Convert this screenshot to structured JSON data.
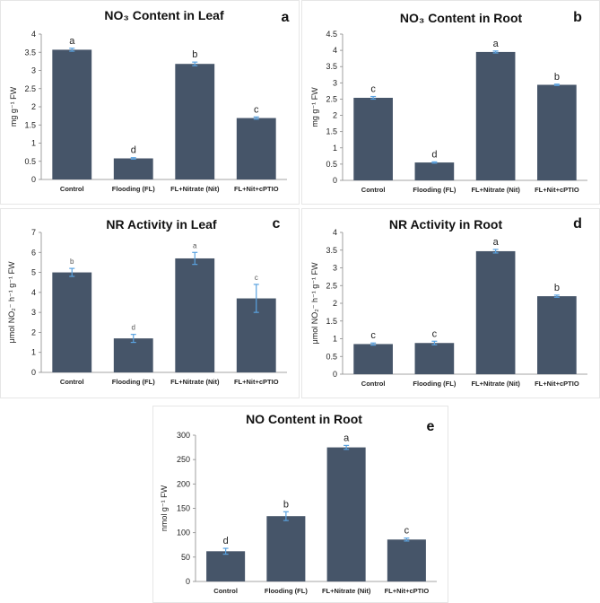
{
  "colors": {
    "bar": "#465569",
    "error_bar": "#5aa2e0"
  },
  "chart_data": [
    {
      "type": "bar",
      "panel": "a",
      "title": "NO₃ Content in Leaf",
      "ylabel": "mg g⁻¹ FW",
      "categories": [
        "Control",
        "Flooding (FL)",
        "FL+Nitrate (Nit)",
        "FL+Nit+cPTIO"
      ],
      "values": [
        3.57,
        0.58,
        3.18,
        1.69
      ],
      "errors": [
        0.04,
        0.02,
        0.05,
        0.03
      ],
      "letters": [
        "a",
        "d",
        "b",
        "c"
      ],
      "ylim": [
        0,
        4
      ],
      "yticks": [
        "0",
        "0.5",
        "1",
        "1.5",
        "2",
        "2.5",
        "3",
        "3.5",
        "4"
      ]
    },
    {
      "type": "bar",
      "panel": "b",
      "title": "NO₃ Content in Root",
      "ylabel": "mg g⁻¹ FW",
      "categories": [
        "Control",
        "Flooding (FL)",
        "FL+Nitrate (Nit)",
        "FL+Nit+cPTIO"
      ],
      "values": [
        2.54,
        0.55,
        3.95,
        2.94
      ],
      "errors": [
        0.04,
        0.02,
        0.03,
        0.02
      ],
      "letters": [
        "c",
        "d",
        "a",
        "b"
      ],
      "ylim": [
        0,
        4.5
      ],
      "yticks": [
        "0",
        "0.5",
        "1",
        "1.5",
        "2",
        "2.5",
        "3",
        "3.5",
        "4",
        "4.5"
      ]
    },
    {
      "type": "bar",
      "panel": "c",
      "title": "NR Activity in Leaf",
      "ylabel": "μmol NO₂⁻ h⁻¹ g⁻¹ FW",
      "categories": [
        "Control",
        "Flooding (FL)",
        "FL+Nitrate (Nit)",
        "FL+Nit+cPTIO"
      ],
      "values": [
        5.0,
        1.7,
        5.7,
        3.7
      ],
      "errors": [
        0.2,
        0.2,
        0.3,
        0.7
      ],
      "letters": [
        "b",
        "d",
        "a",
        "c"
      ],
      "ylim": [
        0,
        7
      ],
      "yticks": [
        "0",
        "1",
        "2",
        "3",
        "4",
        "5",
        "6",
        "7"
      ]
    },
    {
      "type": "bar",
      "panel": "d",
      "title": "NR Activity in Root",
      "ylabel": "μmol NO₂⁻ h⁻¹ g⁻¹ FW",
      "categories": [
        "Control",
        "Flooding (FL)",
        "FL+Nitrate (Nit)",
        "FL+Nit+cPTIO"
      ],
      "values": [
        0.85,
        0.88,
        3.47,
        2.2
      ],
      "errors": [
        0.03,
        0.05,
        0.05,
        0.03
      ],
      "letters": [
        "c",
        "c",
        "a",
        "b"
      ],
      "ylim": [
        0,
        4
      ],
      "yticks": [
        "0",
        "0.5",
        "1",
        "1.5",
        "2",
        "2.5",
        "3",
        "3.5",
        "4"
      ]
    },
    {
      "type": "bar",
      "panel": "e",
      "title": "NO Content in Root",
      "ylabel": "nmol g⁻¹ FW",
      "categories": [
        "Control",
        "Flooding (FL)",
        "FL+Nitrate (Nit)",
        "FL+Nit+cPTIO"
      ],
      "values": [
        62,
        134,
        275,
        86
      ],
      "errors": [
        6,
        9,
        4,
        3
      ],
      "letters": [
        "d",
        "b",
        "a",
        "c"
      ],
      "ylim": [
        0,
        300
      ],
      "yticks": [
        "0",
        "50",
        "100",
        "150",
        "200",
        "250",
        "300"
      ]
    }
  ]
}
